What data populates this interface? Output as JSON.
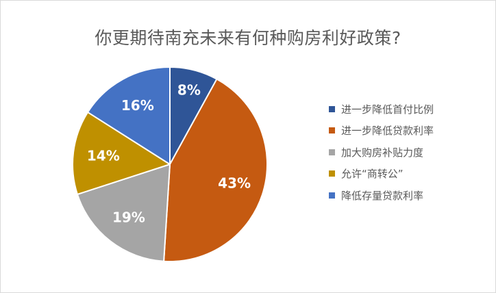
{
  "chart_data": {
    "type": "pie",
    "title": "你更期待南充未来有何种购房利好政策?",
    "categories": [
      "进一步降低首付比例",
      "进一步降低贷款利率",
      "加大购房补贴力度",
      "允许“商转公”",
      "降低存量贷款利率"
    ],
    "values": [
      8,
      43,
      19,
      14,
      16
    ],
    "value_labels": [
      "8%",
      "43%",
      "19%",
      "14%",
      "16%"
    ],
    "colors": [
      "#2f5597",
      "#c55a11",
      "#a5a5a5",
      "#bf9000",
      "#4472c4"
    ],
    "legend_position": "right",
    "start_angle": "12 o'clock",
    "direction": "clockwise"
  }
}
